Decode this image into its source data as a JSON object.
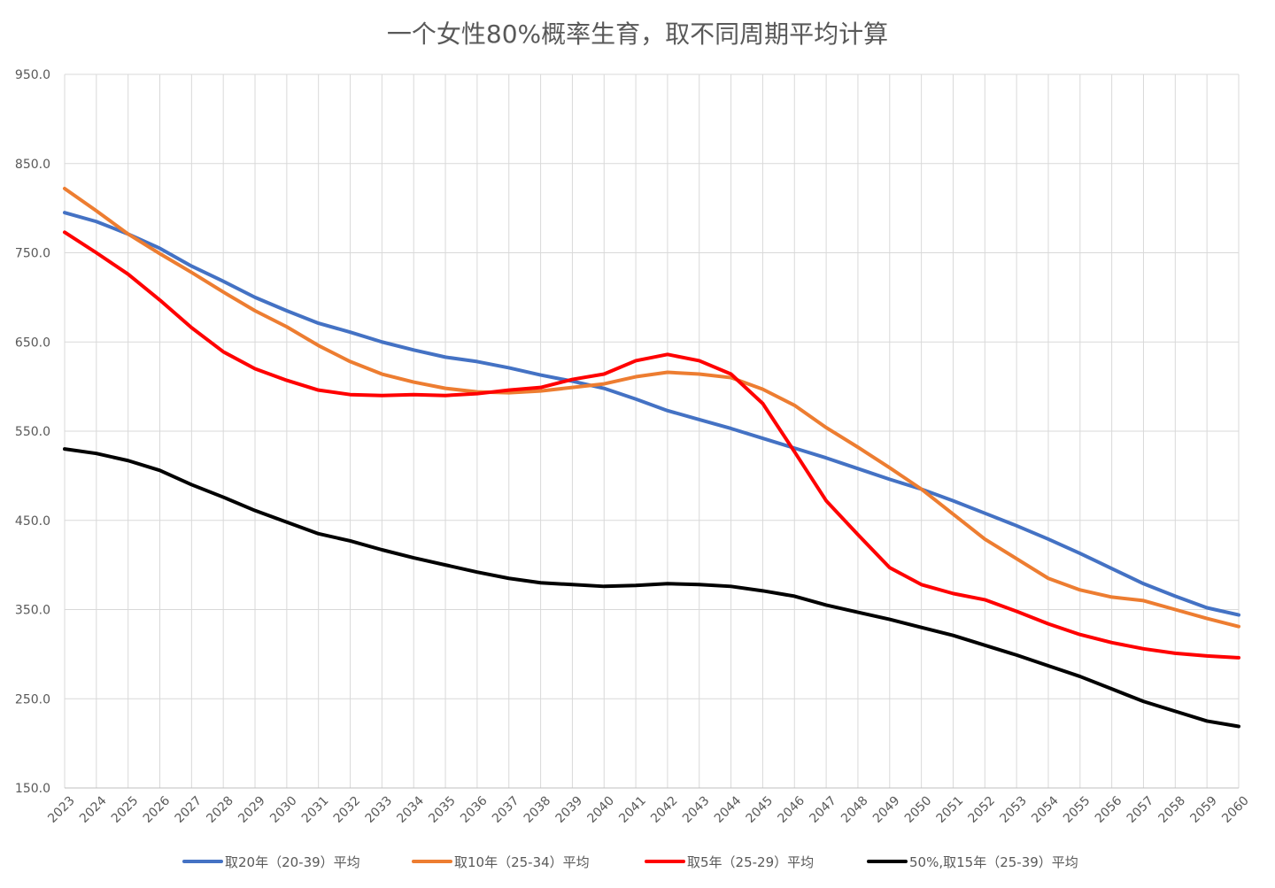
{
  "chart_data": {
    "type": "line",
    "title": "一个女性80%概率生育，取不同周期平均计算",
    "ylim": [
      150,
      950
    ],
    "yticks": [
      "150.0",
      "250.0",
      "350.0",
      "450.0",
      "550.0",
      "650.0",
      "750.0",
      "850.0",
      "950.0"
    ],
    "ytick_values": [
      150,
      250,
      350,
      450,
      550,
      650,
      750,
      850,
      950
    ],
    "categories": [
      "2023",
      "2024",
      "2025",
      "2026",
      "2027",
      "2028",
      "2029",
      "2030",
      "2031",
      "2032",
      "2033",
      "2034",
      "2035",
      "2036",
      "2037",
      "2038",
      "2039",
      "2040",
      "2041",
      "2042",
      "2043",
      "2044",
      "2045",
      "2046",
      "2047",
      "2048",
      "2049",
      "2050",
      "2051",
      "2052",
      "2053",
      "2054",
      "2055",
      "2056",
      "2057",
      "2058",
      "2059",
      "2060"
    ],
    "grid": true,
    "legend_position": "bottom",
    "series": [
      {
        "name": "取20年（20-39）平均",
        "color": "#4472C4",
        "values": [
          795,
          785,
          771,
          755,
          735,
          718,
          700,
          685,
          671,
          661,
          650,
          641,
          633,
          628,
          621,
          613,
          606,
          598,
          586,
          573,
          563,
          553,
          542,
          531,
          520,
          508,
          496,
          485,
          472,
          458,
          444,
          429,
          413,
          396,
          379,
          365,
          352,
          344
        ]
      },
      {
        "name": "取10年（25-34）平均",
        "color": "#ED7D31",
        "values": [
          822,
          797,
          771,
          749,
          728,
          706,
          685,
          667,
          646,
          628,
          614,
          605,
          598,
          594,
          593,
          595,
          599,
          603,
          611,
          616,
          614,
          610,
          597,
          579,
          554,
          532,
          509,
          485,
          457,
          429,
          407,
          385,
          372,
          364,
          360,
          350,
          340,
          331
        ]
      },
      {
        "name": "取5年（25-29）平均",
        "color": "#FF0000",
        "values": [
          773,
          750,
          726,
          697,
          666,
          639,
          620,
          607,
          596,
          591,
          590,
          591,
          590,
          592,
          596,
          599,
          608,
          614,
          629,
          636,
          629,
          614,
          581,
          527,
          472,
          434,
          397,
          378,
          368,
          361,
          348,
          334,
          322,
          313,
          306,
          301,
          298,
          296
        ]
      },
      {
        "name": "50%,取15年（25-39）平均",
        "color": "#000000",
        "values": [
          530,
          525,
          517,
          506,
          490,
          476,
          461,
          448,
          435,
          427,
          417,
          408,
          400,
          392,
          385,
          380,
          378,
          376,
          377,
          379,
          378,
          376,
          371,
          365,
          355,
          347,
          339,
          330,
          321,
          310,
          299,
          287,
          275,
          261,
          247,
          236,
          225,
          219
        ]
      }
    ]
  }
}
